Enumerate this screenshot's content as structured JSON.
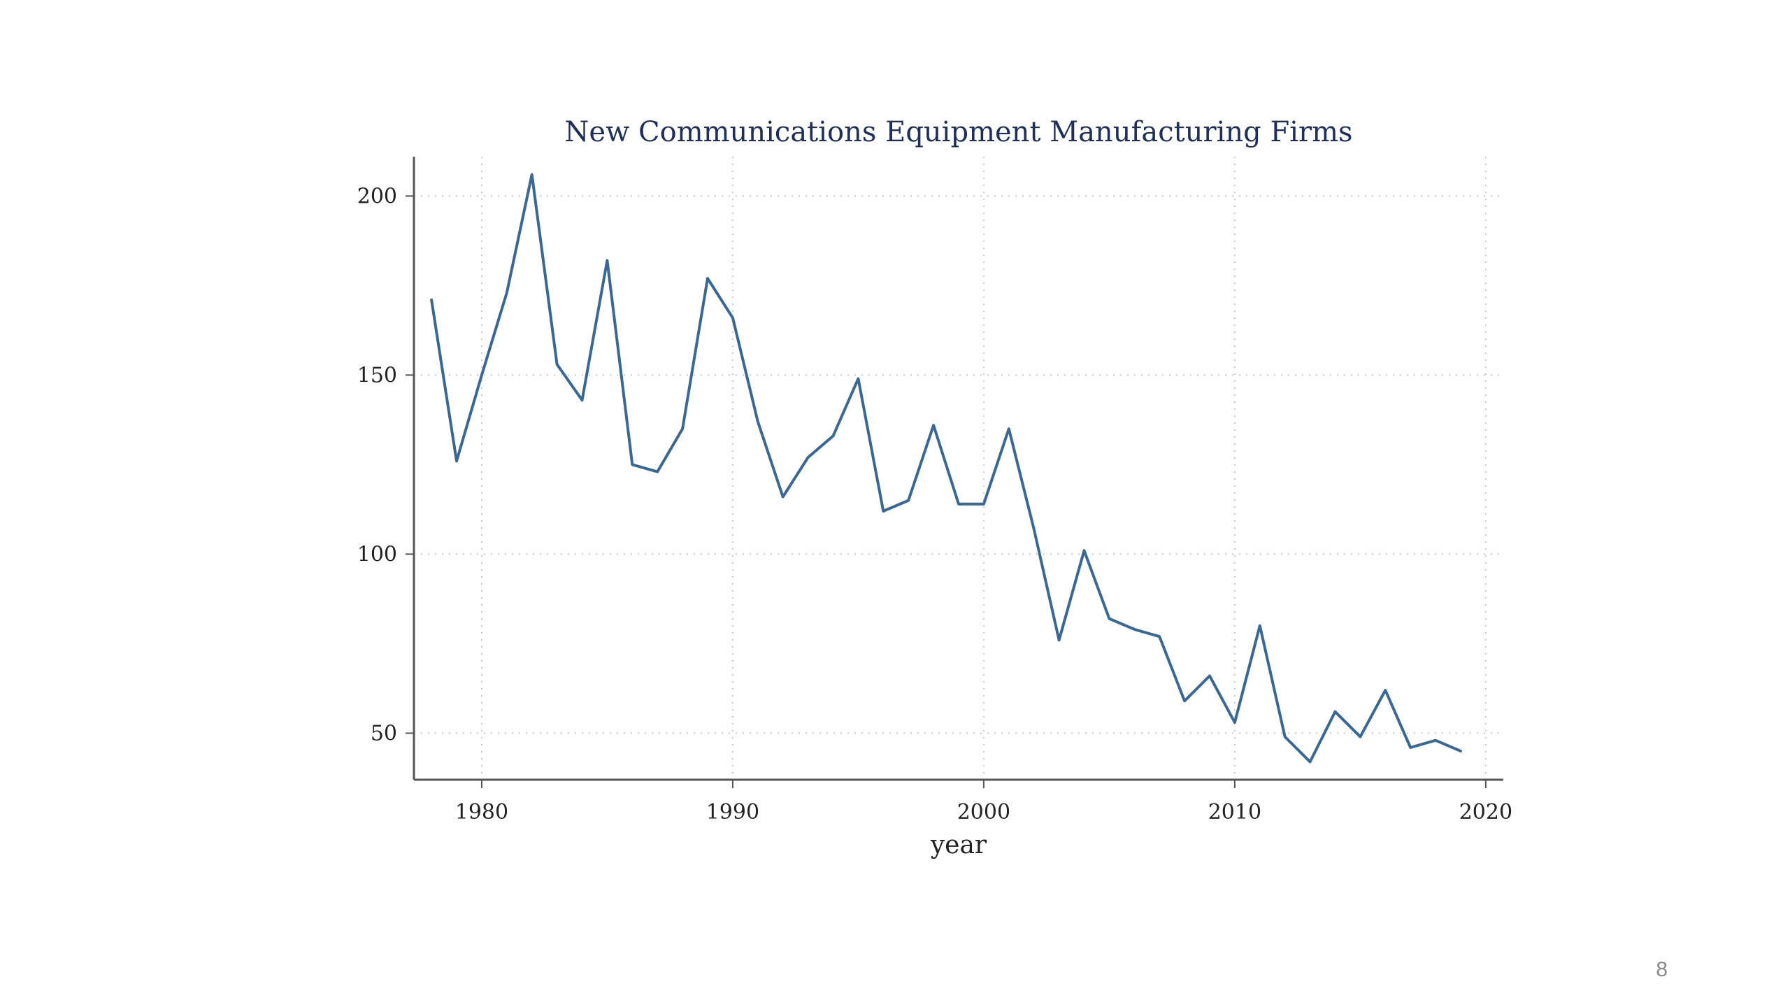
{
  "slide": {
    "page_number": "8"
  },
  "chart_data": {
    "type": "line",
    "title": "New Communications Equipment Manufacturing Firms",
    "xlabel": "year",
    "ylabel": "",
    "xlim": [
      1977.3,
      2020.7
    ],
    "ylim": [
      37,
      211
    ],
    "x_ticks": [
      1980,
      1990,
      2000,
      2010,
      2020
    ],
    "y_ticks": [
      50,
      100,
      150,
      200
    ],
    "grid": true,
    "legend": "none",
    "colors": {
      "line": "#3a6894",
      "title": "#1f2f5a",
      "axis": "#555555",
      "grid": "#c8c8c8",
      "text": "#222222"
    },
    "series": [
      {
        "x": [
          1978,
          1979,
          1980,
          1981,
          1982,
          1983,
          1984,
          1985,
          1986,
          1987,
          1988,
          1989,
          1990,
          1991,
          1992,
          1993,
          1994,
          1995,
          1996,
          1997,
          1998,
          1999,
          2000,
          2001,
          2002,
          2003,
          2004,
          2005,
          2006,
          2007,
          2008,
          2009,
          2010,
          2011,
          2012,
          2013,
          2014,
          2015,
          2016,
          2017,
          2018,
          2019
        ],
        "values": [
          171,
          126,
          150,
          173,
          206,
          153,
          143,
          182,
          125,
          123,
          135,
          177,
          166,
          137,
          116,
          127,
          133,
          149,
          112,
          115,
          136,
          114,
          114,
          135,
          107,
          76,
          101,
          82,
          79,
          77,
          59,
          66,
          53,
          80,
          49,
          42,
          56,
          49,
          62,
          46,
          48,
          45
        ]
      }
    ]
  }
}
